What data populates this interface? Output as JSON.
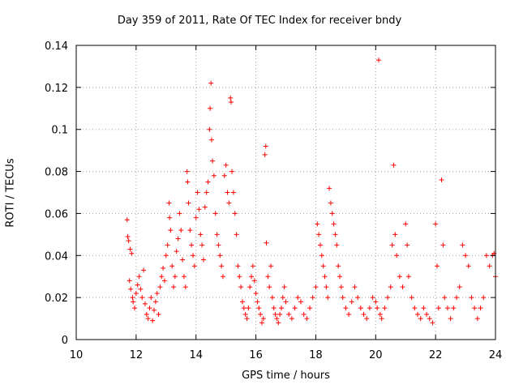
{
  "chart_data": {
    "type": "scatter",
    "title": "Day 359 of 2011, Rate Of TEC Index for receiver bndy",
    "xlabel": "GPS time / hours",
    "ylabel": "ROTI / TECUs",
    "xlim": [
      10,
      24
    ],
    "ylim": [
      0,
      0.14
    ],
    "x_ticks": [
      "10",
      "12",
      "14",
      "16",
      "18",
      "20",
      "22",
      "24"
    ],
    "y_ticks": [
      "0",
      "0.02",
      "0.04",
      "0.06",
      "0.08",
      "0.1",
      "0.12",
      "0.14"
    ],
    "grid": true,
    "marker": "+",
    "color": "#ff0000",
    "series": [
      {
        "points": [
          [
            11.7,
            0.057
          ],
          [
            11.72,
            0.049
          ],
          [
            11.75,
            0.047
          ],
          [
            11.8,
            0.043
          ],
          [
            11.85,
            0.041
          ],
          [
            11.78,
            0.028
          ],
          [
            11.82,
            0.024
          ],
          [
            11.88,
            0.02
          ],
          [
            11.9,
            0.018
          ],
          [
            11.95,
            0.015
          ],
          [
            12.0,
            0.022
          ],
          [
            12.05,
            0.026
          ],
          [
            12.1,
            0.03
          ],
          [
            12.15,
            0.024
          ],
          [
            12.2,
            0.02
          ],
          [
            12.25,
            0.033
          ],
          [
            12.3,
            0.017
          ],
          [
            12.35,
            0.012
          ],
          [
            12.4,
            0.01
          ],
          [
            12.45,
            0.015
          ],
          [
            12.5,
            0.02
          ],
          [
            12.55,
            0.009
          ],
          [
            12.6,
            0.014
          ],
          [
            12.65,
            0.018
          ],
          [
            12.7,
            0.022
          ],
          [
            12.75,
            0.012
          ],
          [
            12.8,
            0.025
          ],
          [
            12.85,
            0.03
          ],
          [
            12.9,
            0.034
          ],
          [
            12.95,
            0.028
          ],
          [
            13.0,
            0.04
          ],
          [
            13.05,
            0.045
          ],
          [
            13.1,
            0.065
          ],
          [
            13.12,
            0.058
          ],
          [
            13.15,
            0.052
          ],
          [
            13.2,
            0.035
          ],
          [
            13.25,
            0.025
          ],
          [
            13.3,
            0.03
          ],
          [
            13.35,
            0.042
          ],
          [
            13.4,
            0.048
          ],
          [
            13.45,
            0.06
          ],
          [
            13.5,
            0.052
          ],
          [
            13.55,
            0.038
          ],
          [
            13.6,
            0.03
          ],
          [
            13.65,
            0.025
          ],
          [
            13.7,
            0.08
          ],
          [
            13.72,
            0.075
          ],
          [
            13.75,
            0.065
          ],
          [
            13.8,
            0.052
          ],
          [
            13.85,
            0.045
          ],
          [
            13.9,
            0.04
          ],
          [
            13.95,
            0.035
          ],
          [
            14.0,
            0.058
          ],
          [
            14.05,
            0.07
          ],
          [
            14.1,
            0.062
          ],
          [
            14.15,
            0.05
          ],
          [
            14.2,
            0.045
          ],
          [
            14.25,
            0.038
          ],
          [
            14.3,
            0.063
          ],
          [
            14.35,
            0.07
          ],
          [
            14.4,
            0.075
          ],
          [
            14.45,
            0.1
          ],
          [
            14.47,
            0.11
          ],
          [
            14.5,
            0.122
          ],
          [
            14.52,
            0.095
          ],
          [
            14.55,
            0.085
          ],
          [
            14.6,
            0.078
          ],
          [
            14.65,
            0.06
          ],
          [
            14.7,
            0.05
          ],
          [
            14.75,
            0.045
          ],
          [
            14.8,
            0.04
          ],
          [
            14.85,
            0.035
          ],
          [
            14.9,
            0.03
          ],
          [
            14.95,
            0.078
          ],
          [
            15.0,
            0.083
          ],
          [
            15.05,
            0.07
          ],
          [
            15.1,
            0.065
          ],
          [
            15.15,
            0.115
          ],
          [
            15.17,
            0.113
          ],
          [
            15.2,
            0.08
          ],
          [
            15.25,
            0.07
          ],
          [
            15.3,
            0.06
          ],
          [
            15.35,
            0.05
          ],
          [
            15.4,
            0.035
          ],
          [
            15.45,
            0.03
          ],
          [
            15.5,
            0.025
          ],
          [
            15.55,
            0.018
          ],
          [
            15.6,
            0.015
          ],
          [
            15.65,
            0.012
          ],
          [
            15.7,
            0.01
          ],
          [
            15.75,
            0.015
          ],
          [
            15.8,
            0.025
          ],
          [
            15.85,
            0.03
          ],
          [
            15.9,
            0.035
          ],
          [
            15.95,
            0.028
          ],
          [
            16.0,
            0.022
          ],
          [
            16.05,
            0.018
          ],
          [
            16.1,
            0.015
          ],
          [
            16.15,
            0.012
          ],
          [
            16.2,
            0.008
          ],
          [
            16.25,
            0.01
          ],
          [
            16.3,
            0.088
          ],
          [
            16.33,
            0.092
          ],
          [
            16.35,
            0.046
          ],
          [
            16.4,
            0.03
          ],
          [
            16.45,
            0.025
          ],
          [
            16.5,
            0.035
          ],
          [
            16.55,
            0.02
          ],
          [
            16.6,
            0.015
          ],
          [
            16.65,
            0.012
          ],
          [
            16.7,
            0.01
          ],
          [
            16.75,
            0.008
          ],
          [
            16.8,
            0.012
          ],
          [
            16.85,
            0.015
          ],
          [
            16.9,
            0.02
          ],
          [
            16.95,
            0.025
          ],
          [
            17.0,
            0.018
          ],
          [
            17.1,
            0.012
          ],
          [
            17.2,
            0.01
          ],
          [
            17.3,
            0.015
          ],
          [
            17.4,
            0.02
          ],
          [
            17.5,
            0.018
          ],
          [
            17.6,
            0.012
          ],
          [
            17.7,
            0.01
          ],
          [
            17.8,
            0.015
          ],
          [
            17.9,
            0.02
          ],
          [
            18.0,
            0.025
          ],
          [
            18.05,
            0.055
          ],
          [
            18.1,
            0.05
          ],
          [
            18.15,
            0.045
          ],
          [
            18.2,
            0.04
          ],
          [
            18.25,
            0.035
          ],
          [
            18.3,
            0.03
          ],
          [
            18.35,
            0.025
          ],
          [
            18.4,
            0.02
          ],
          [
            18.45,
            0.072
          ],
          [
            18.5,
            0.065
          ],
          [
            18.55,
            0.06
          ],
          [
            18.6,
            0.055
          ],
          [
            18.65,
            0.05
          ],
          [
            18.7,
            0.045
          ],
          [
            18.75,
            0.035
          ],
          [
            18.8,
            0.03
          ],
          [
            18.85,
            0.025
          ],
          [
            18.9,
            0.02
          ],
          [
            19.0,
            0.015
          ],
          [
            19.1,
            0.012
          ],
          [
            19.2,
            0.018
          ],
          [
            19.3,
            0.025
          ],
          [
            19.4,
            0.02
          ],
          [
            19.5,
            0.015
          ],
          [
            19.6,
            0.012
          ],
          [
            19.7,
            0.01
          ],
          [
            19.8,
            0.015
          ],
          [
            19.9,
            0.02
          ],
          [
            20.0,
            0.018
          ],
          [
            20.05,
            0.015
          ],
          [
            20.1,
            0.133
          ],
          [
            20.15,
            0.012
          ],
          [
            20.2,
            0.01
          ],
          [
            20.3,
            0.015
          ],
          [
            20.4,
            0.02
          ],
          [
            20.5,
            0.025
          ],
          [
            20.55,
            0.045
          ],
          [
            20.6,
            0.083
          ],
          [
            20.65,
            0.05
          ],
          [
            20.7,
            0.04
          ],
          [
            20.8,
            0.03
          ],
          [
            20.9,
            0.025
          ],
          [
            21.0,
            0.055
          ],
          [
            21.05,
            0.045
          ],
          [
            21.1,
            0.03
          ],
          [
            21.2,
            0.02
          ],
          [
            21.3,
            0.015
          ],
          [
            21.4,
            0.012
          ],
          [
            21.5,
            0.01
          ],
          [
            21.6,
            0.015
          ],
          [
            21.7,
            0.012
          ],
          [
            21.8,
            0.01
          ],
          [
            21.9,
            0.008
          ],
          [
            22.0,
            0.055
          ],
          [
            22.05,
            0.035
          ],
          [
            22.1,
            0.015
          ],
          [
            22.2,
            0.076
          ],
          [
            22.25,
            0.045
          ],
          [
            22.3,
            0.02
          ],
          [
            22.4,
            0.015
          ],
          [
            22.5,
            0.01
          ],
          [
            22.6,
            0.015
          ],
          [
            22.7,
            0.02
          ],
          [
            22.8,
            0.025
          ],
          [
            22.9,
            0.045
          ],
          [
            23.0,
            0.04
          ],
          [
            23.1,
            0.035
          ],
          [
            23.2,
            0.02
          ],
          [
            23.3,
            0.015
          ],
          [
            23.4,
            0.01
          ],
          [
            23.5,
            0.015
          ],
          [
            23.6,
            0.02
          ],
          [
            23.7,
            0.04
          ],
          [
            23.8,
            0.035
          ],
          [
            23.9,
            0.04
          ],
          [
            23.95,
            0.041
          ],
          [
            24.0,
            0.03
          ]
        ]
      }
    ]
  }
}
